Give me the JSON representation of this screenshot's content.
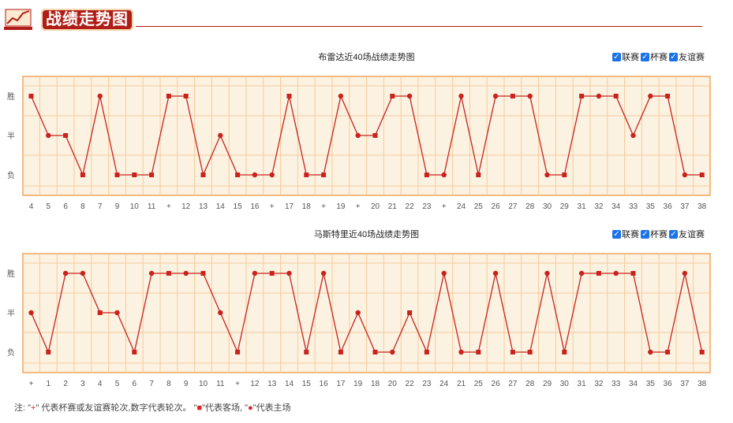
{
  "header": {
    "title": "战绩走势图"
  },
  "filters": [
    {
      "label": "联赛",
      "checked": true
    },
    {
      "label": "杯赛",
      "checked": true
    },
    {
      "label": "友谊赛",
      "checked": true
    }
  ],
  "colors": {
    "line": "#c8231c",
    "plot_bg": "#fbf2e2",
    "plot_border": "#f4a65a",
    "grid": "#f7c99a"
  },
  "chart_data": [
    {
      "type": "line",
      "title": "布雷达近40场战绩走势图",
      "y_categories": [
        "胜",
        "半",
        "负"
      ],
      "x": [
        "4",
        "5",
        "6",
        "8",
        "7",
        "9",
        "10",
        "11",
        "+",
        "12",
        "13",
        "14",
        "15",
        "16",
        "+",
        "17",
        "18",
        "+",
        "19",
        "+",
        "20",
        "21",
        "22",
        "23",
        "+",
        "24",
        "25",
        "26",
        "27",
        "28",
        "30",
        "29",
        "31",
        "32",
        "34",
        "33",
        "35",
        "36",
        "37",
        "38"
      ],
      "values": [
        "胜",
        "半",
        "半",
        "负",
        "胜",
        "负",
        "负",
        "负",
        "胜",
        "胜",
        "负",
        "半",
        "负",
        "负",
        "负",
        "胜",
        "负",
        "负",
        "胜",
        "半",
        "半",
        "胜",
        "胜",
        "负",
        "负",
        "胜",
        "负",
        "胜",
        "胜",
        "胜",
        "负",
        "负",
        "胜",
        "胜",
        "胜",
        "半",
        "胜",
        "胜",
        "负",
        "负"
      ],
      "markers": [
        "square",
        "circle",
        "square",
        "square",
        "circle",
        "square",
        "square",
        "square",
        "square",
        "square",
        "square",
        "circle",
        "square",
        "circle",
        "circle",
        "square",
        "square",
        "square",
        "circle",
        "circle",
        "square",
        "square",
        "circle",
        "square",
        "circle",
        "circle",
        "square",
        "circle",
        "square",
        "circle",
        "circle",
        "square",
        "square",
        "circle",
        "square",
        "circle",
        "circle",
        "square",
        "circle",
        "square"
      ]
    },
    {
      "type": "line",
      "title": "马斯特里近40场战绩走势图",
      "y_categories": [
        "胜",
        "半",
        "负"
      ],
      "x": [
        "+",
        "1",
        "2",
        "3",
        "4",
        "5",
        "6",
        "7",
        "8",
        "9",
        "10",
        "11",
        "+",
        "12",
        "13",
        "14",
        "15",
        "16",
        "17",
        "19",
        "18",
        "20",
        "22",
        "23",
        "24",
        "21",
        "25",
        "26",
        "27",
        "28",
        "29",
        "30",
        "31",
        "32",
        "33",
        "34",
        "35",
        "36",
        "37",
        "38"
      ],
      "values": [
        "半",
        "负",
        "胜",
        "胜",
        "半",
        "半",
        "负",
        "胜",
        "胜",
        "胜",
        "胜",
        "半",
        "负",
        "胜",
        "胜",
        "胜",
        "负",
        "胜",
        "负",
        "半",
        "负",
        "负",
        "半",
        "负",
        "胜",
        "负",
        "负",
        "胜",
        "负",
        "负",
        "胜",
        "负",
        "胜",
        "胜",
        "胜",
        "胜",
        "负",
        "负",
        "胜",
        "负"
      ],
      "markers": [
        "circle",
        "square",
        "circle",
        "circle",
        "square",
        "circle",
        "square",
        "circle",
        "square",
        "circle",
        "square",
        "circle",
        "square",
        "circle",
        "square",
        "circle",
        "square",
        "circle",
        "square",
        "circle",
        "square",
        "circle",
        "square",
        "square",
        "circle",
        "circle",
        "square",
        "circle",
        "square",
        "square",
        "circle",
        "square",
        "circle",
        "square",
        "circle",
        "square",
        "circle",
        "square",
        "circle",
        "square"
      ]
    }
  ],
  "note": {
    "prefix": "注: \"",
    "plus": "+",
    "mid1": "\" 代表杯赛或友谊赛轮次,数字代表轮次。 \"",
    "square": "■",
    "mid2": "\"代表客场, \"",
    "circle": "●",
    "suffix": "\"代表主场"
  }
}
